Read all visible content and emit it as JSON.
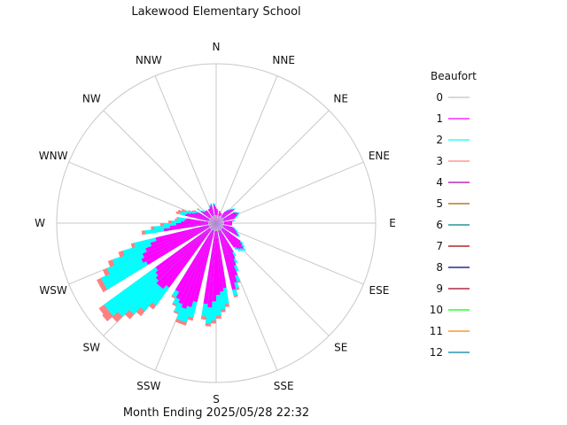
{
  "chart_data": {
    "type": "wind-rose",
    "title": "Lakewood Elementary School",
    "footer": "Month Ending 2025/05/28 22:32",
    "directions": [
      "N",
      "NNE",
      "NE",
      "ENE",
      "E",
      "ESE",
      "SE",
      "SSE",
      "S",
      "SSW",
      "SW",
      "WSW",
      "W",
      "WNW",
      "NW",
      "NNW"
    ],
    "grid": true,
    "legend": {
      "title": "Beaufort",
      "position": "right",
      "entries": [
        {
          "label": "0",
          "color": "#c0c0c0"
        },
        {
          "label": "1",
          "color": "#ff00ff"
        },
        {
          "label": "2",
          "color": "#00ffff"
        },
        {
          "label": "3",
          "color": "#ff8080"
        },
        {
          "label": "4",
          "color": "#b000b0"
        },
        {
          "label": "5",
          "color": "#a06000"
        },
        {
          "label": "6",
          "color": "#007f7f"
        },
        {
          "label": "7",
          "color": "#a00000"
        },
        {
          "label": "8",
          "color": "#000080"
        },
        {
          "label": "9",
          "color": "#a00020"
        },
        {
          "label": "10",
          "color": "#00ff00"
        },
        {
          "label": "11",
          "color": "#ff8000"
        },
        {
          "label": "12",
          "color": "#0080a0"
        }
      ]
    },
    "radial_max": 1.0,
    "angle_offsets": [
      -0.33,
      -0.2,
      -0.07,
      0.07,
      0.2,
      0.33
    ],
    "sectors": [
      {
        "direction": "N",
        "wedges": [
          [
            0.05,
            0.07,
            0.01,
            0.0
          ],
          [
            0.05,
            0.06,
            0.01,
            0.0
          ],
          [
            0.05,
            0.05,
            0.0,
            0.0
          ],
          [
            0.05,
            0.04,
            0.0,
            0.0
          ],
          [
            0.05,
            0.04,
            0.0,
            0.0
          ],
          [
            0.05,
            0.03,
            0.0,
            0.0
          ]
        ]
      },
      {
        "direction": "NNE",
        "wedges": [
          [
            0.05,
            0.03,
            0.0,
            0.0
          ],
          [
            0.05,
            0.03,
            0.0,
            0.0
          ],
          [
            0.05,
            0.02,
            0.0,
            0.0
          ],
          [
            0.05,
            0.02,
            0.0,
            0.0
          ],
          [
            0.05,
            0.02,
            0.0,
            0.0
          ],
          [
            0.05,
            0.02,
            0.0,
            0.0
          ]
        ]
      },
      {
        "direction": "NE",
        "wedges": [
          [
            0.05,
            0.04,
            0.0,
            0.0
          ],
          [
            0.05,
            0.05,
            0.01,
            0.0
          ],
          [
            0.05,
            0.06,
            0.01,
            0.0
          ],
          [
            0.05,
            0.07,
            0.01,
            0.0
          ],
          [
            0.05,
            0.08,
            0.01,
            0.0
          ],
          [
            0.05,
            0.09,
            0.01,
            0.0
          ]
        ]
      },
      {
        "direction": "ENE",
        "wedges": [
          [
            0.05,
            0.08,
            0.01,
            0.0
          ],
          [
            0.05,
            0.09,
            0.01,
            0.0
          ],
          [
            0.05,
            0.1,
            0.01,
            0.0
          ],
          [
            0.05,
            0.09,
            0.01,
            0.0
          ],
          [
            0.05,
            0.08,
            0.01,
            0.0
          ],
          [
            0.05,
            0.07,
            0.01,
            0.0
          ]
        ]
      },
      {
        "direction": "E",
        "wedges": [
          [
            0.05,
            0.06,
            0.01,
            0.0
          ],
          [
            0.05,
            0.05,
            0.0,
            0.0
          ],
          [
            0.05,
            0.05,
            0.0,
            0.0
          ],
          [
            0.05,
            0.05,
            0.0,
            0.0
          ],
          [
            0.05,
            0.05,
            0.0,
            0.0
          ],
          [
            0.05,
            0.05,
            0.0,
            0.0
          ]
        ]
      },
      {
        "direction": "ESE",
        "wedges": [
          [
            0.05,
            0.06,
            0.01,
            0.0
          ],
          [
            0.05,
            0.07,
            0.01,
            0.0
          ],
          [
            0.05,
            0.08,
            0.01,
            0.0
          ],
          [
            0.05,
            0.09,
            0.01,
            0.0
          ],
          [
            0.05,
            0.1,
            0.01,
            0.0
          ],
          [
            0.05,
            0.11,
            0.01,
            0.0
          ]
        ]
      },
      {
        "direction": "SE",
        "wedges": [
          [
            0.05,
            0.14,
            0.02,
            0.0
          ],
          [
            0.05,
            0.16,
            0.02,
            0.0
          ],
          [
            0.05,
            0.18,
            0.02,
            0.0
          ],
          [
            0.05,
            0.17,
            0.02,
            0.0
          ],
          [
            0.05,
            0.16,
            0.02,
            0.0
          ],
          [
            0.05,
            0.14,
            0.02,
            0.0
          ]
        ]
      },
      {
        "direction": "SSE",
        "wedges": [
          [
            0.05,
            0.16,
            0.03,
            0.0
          ],
          [
            0.05,
            0.2,
            0.03,
            0.0
          ],
          [
            0.05,
            0.24,
            0.04,
            0.0
          ],
          [
            0.05,
            0.3,
            0.04,
            0.01
          ],
          [
            0.05,
            0.34,
            0.04,
            0.01
          ],
          [
            0.05,
            0.38,
            0.04,
            0.01
          ]
        ]
      },
      {
        "direction": "S",
        "wedges": [
          [
            0.05,
            0.36,
            0.1,
            0.02
          ],
          [
            0.05,
            0.38,
            0.11,
            0.02
          ],
          [
            0.05,
            0.4,
            0.13,
            0.02
          ],
          [
            0.05,
            0.44,
            0.12,
            0.02
          ],
          [
            0.05,
            0.48,
            0.1,
            0.02
          ],
          [
            0.05,
            0.46,
            0.08,
            0.02
          ]
        ]
      },
      {
        "direction": "SSW",
        "wedges": [
          [
            0.05,
            0.46,
            0.1,
            0.02
          ],
          [
            0.05,
            0.5,
            0.1,
            0.02
          ],
          [
            0.05,
            0.52,
            0.08,
            0.02
          ],
          [
            0.05,
            0.5,
            0.06,
            0.01
          ],
          [
            0.05,
            0.48,
            0.04,
            0.01
          ],
          [
            0.05,
            0.44,
            0.04,
            0.01
          ]
        ]
      },
      {
        "direction": "SW",
        "wedges": [
          [
            0.05,
            0.45,
            0.14,
            0.03
          ],
          [
            0.05,
            0.48,
            0.18,
            0.04
          ],
          [
            0.05,
            0.48,
            0.24,
            0.04
          ],
          [
            0.05,
            0.46,
            0.32,
            0.05
          ],
          [
            0.05,
            0.44,
            0.38,
            0.05
          ],
          [
            0.05,
            0.42,
            0.4,
            0.04
          ]
        ]
      },
      {
        "direction": "WSW",
        "wedges": [
          [
            0.05,
            0.45,
            0.3,
            0.03
          ],
          [
            0.05,
            0.47,
            0.28,
            0.03
          ],
          [
            0.05,
            0.45,
            0.24,
            0.03
          ],
          [
            0.05,
            0.42,
            0.22,
            0.03
          ],
          [
            0.05,
            0.38,
            0.18,
            0.03
          ],
          [
            0.05,
            0.34,
            0.14,
            0.02
          ]
        ]
      },
      {
        "direction": "W",
        "wedges": [
          [
            0.05,
            0.28,
            0.12,
            0.02
          ],
          [
            0.05,
            0.24,
            0.1,
            0.02
          ],
          [
            0.05,
            0.2,
            0.08,
            0.02
          ],
          [
            0.05,
            0.17,
            0.06,
            0.02
          ],
          [
            0.05,
            0.15,
            0.05,
            0.01
          ],
          [
            0.05,
            0.14,
            0.05,
            0.01
          ]
        ]
      },
      {
        "direction": "WNW",
        "wedges": [
          [
            0.05,
            0.15,
            0.04,
            0.02
          ],
          [
            0.05,
            0.14,
            0.04,
            0.02
          ],
          [
            0.05,
            0.12,
            0.04,
            0.02
          ],
          [
            0.05,
            0.1,
            0.03,
            0.01
          ],
          [
            0.05,
            0.09,
            0.02,
            0.01
          ],
          [
            0.05,
            0.08,
            0.02,
            0.01
          ]
        ]
      },
      {
        "direction": "NW",
        "wedges": [
          [
            0.05,
            0.07,
            0.02,
            0.01
          ],
          [
            0.05,
            0.06,
            0.01,
            0.0
          ],
          [
            0.05,
            0.05,
            0.01,
            0.0
          ],
          [
            0.05,
            0.05,
            0.01,
            0.0
          ],
          [
            0.05,
            0.05,
            0.0,
            0.0
          ],
          [
            0.05,
            0.05,
            0.0,
            0.0
          ]
        ]
      },
      {
        "direction": "NNW",
        "wedges": [
          [
            0.05,
            0.05,
            0.0,
            0.0
          ],
          [
            0.05,
            0.05,
            0.0,
            0.0
          ],
          [
            0.05,
            0.05,
            0.0,
            0.0
          ],
          [
            0.05,
            0.06,
            0.01,
            0.0
          ],
          [
            0.05,
            0.06,
            0.01,
            0.0
          ],
          [
            0.05,
            0.07,
            0.01,
            0.0
          ]
        ]
      }
    ]
  }
}
